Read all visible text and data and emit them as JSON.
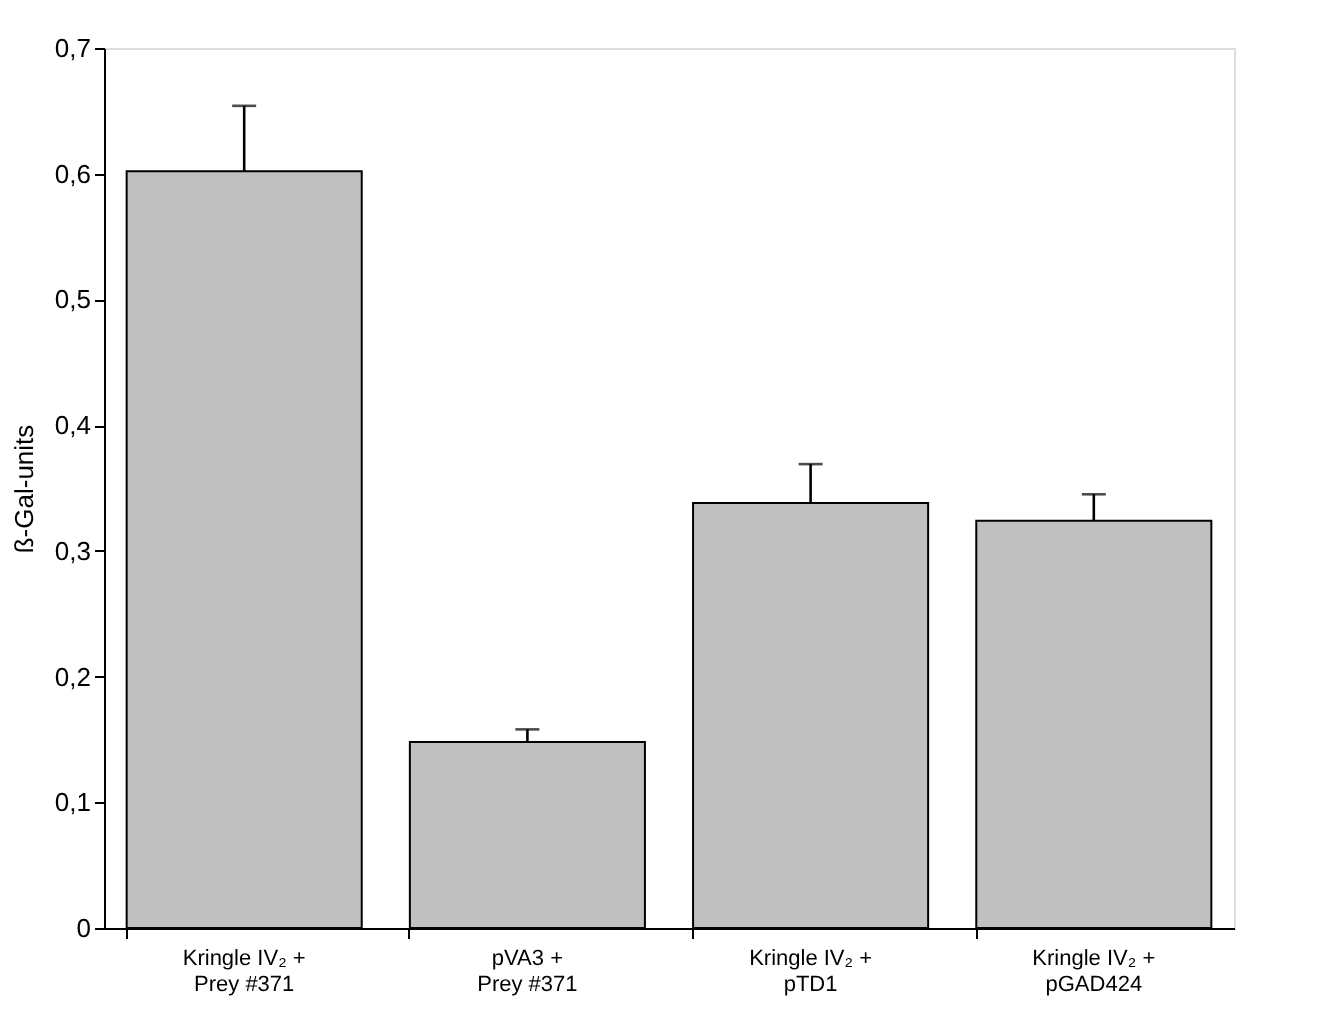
{
  "chart_data": {
    "type": "bar",
    "ylabel": "ß-Gal-units",
    "categories": [
      "Kringle IV₂ +\nPrey #371",
      "pVA3 +\nPrey #371",
      "Kringle IV₂ +\npTD1",
      "Kringle IV₂ +\npGAD424"
    ],
    "values": [
      0.602,
      0.148,
      0.338,
      0.324
    ],
    "errors": [
      [
        0.602,
        0.654
      ],
      [
        0.148,
        0.158
      ],
      [
        0.338,
        0.369
      ],
      [
        0.324,
        0.345
      ]
    ],
    "color": "#c0c0c0",
    "ylim": [
      0,
      0.7
    ],
    "yticks": [
      0,
      {
        "value": 0.1,
        "label": "0,1"
      },
      {
        "value": 0.2,
        "label": "0,2"
      },
      {
        "value": 0.3,
        "label": "0,3"
      },
      {
        "value": 0.4,
        "label": "0,4"
      },
      {
        "value": 0.5,
        "label": "0,5"
      },
      {
        "value": 0.6,
        "label": "0,6"
      },
      {
        "value": 0.7,
        "label": "0,7"
      }
    ],
    "data_labels": false
  }
}
